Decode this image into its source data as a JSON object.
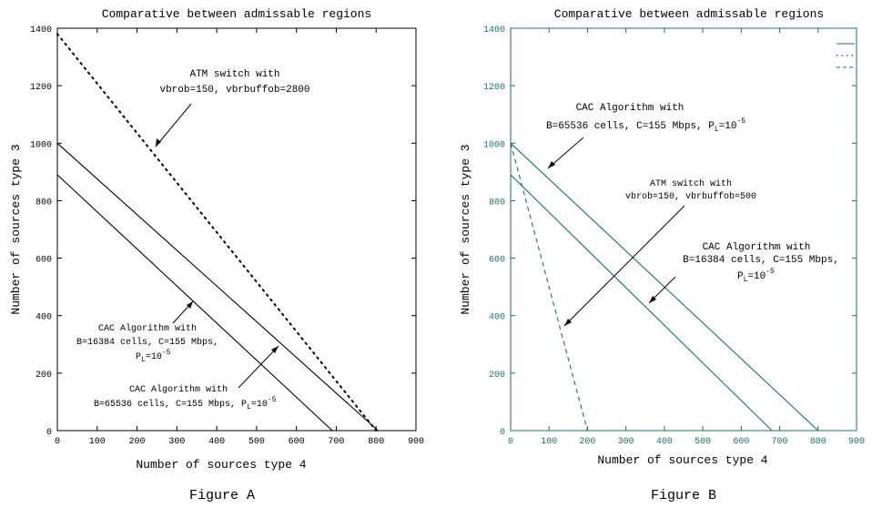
{
  "chart_data": [
    {
      "type": "line",
      "panel": "A",
      "title": "Comparative between admissable regions",
      "xlabel": "Number of sources type 4",
      "ylabel": "Number of sources type 3",
      "caption": "Figure A",
      "xlim": [
        0,
        900
      ],
      "ylim": [
        0,
        1400
      ],
      "xticks": [
        "0",
        "100",
        "200",
        "300",
        "400",
        "500",
        "600",
        "700",
        "800",
        "900"
      ],
      "yticks": [
        "0",
        "200",
        "400",
        "600",
        "800",
        "1000",
        "1200",
        "1400"
      ],
      "grid": false,
      "legend": "none",
      "colors": {
        "axis": "#000000",
        "lines": "#000000"
      },
      "series": [
        {
          "style": "solid",
          "points": [
            [
              0,
              1000
            ],
            [
              805,
              0
            ]
          ]
        },
        {
          "style": "solid",
          "points": [
            [
              0,
              890
            ],
            [
              690,
              0
            ]
          ]
        },
        {
          "style": "dotted",
          "points": [
            [
              0,
              1380
            ],
            [
              800,
              0
            ]
          ]
        }
      ],
      "annotations": [
        {
          "lines": [
            "ATM switch with",
            "vbrob=150, vbrbuffob=2800"
          ],
          "arrow_to": [
            235,
            975
          ]
        },
        {
          "lines": [
            "CAC Algorithm with",
            "B=16384 cells, C=155 Mbps,",
            "P",
            "L",
            "=10",
            "-5"
          ],
          "arrow_to": [
            430,
            455
          ]
        },
        {
          "lines": [
            "CAC Algorithm with",
            "B=65536 cells, C=155 Mbps, P",
            "L",
            "=10",
            "-5"
          ],
          "arrow_to": [
            560,
            310
          ]
        }
      ]
    },
    {
      "type": "line",
      "panel": "B",
      "title": "Comparative between admissable regions",
      "xlabel": "Number of sources type 4",
      "ylabel": "Number of sources type 3",
      "caption": "Figure B",
      "xlim": [
        0,
        900
      ],
      "ylim": [
        0,
        1400
      ],
      "xticks": [
        "0",
        "100",
        "200",
        "300",
        "400",
        "500",
        "600",
        "700",
        "800",
        "900"
      ],
      "yticks": [
        "0",
        "200",
        "400",
        "600",
        "800",
        "1000",
        "1200",
        "1400"
      ],
      "grid": false,
      "legend": "top-right",
      "colors": {
        "axis": "#1f6e66",
        "lines": "#1f6e66"
      },
      "series": [
        {
          "style": "solid",
          "points": [
            [
              0,
              1000
            ],
            [
              800,
              0
            ]
          ]
        },
        {
          "style": "solid",
          "points": [
            [
              0,
              890
            ],
            [
              680,
              0
            ]
          ]
        },
        {
          "style": "dashed",
          "points": [
            [
              0,
              1000
            ],
            [
              200,
              0
            ]
          ]
        }
      ],
      "annotations": [
        {
          "lines": [
            "CAC Algorithm with",
            "B=65536 cells, C=155 Mbps, P",
            "L",
            "=10",
            "-5"
          ],
          "arrow_to": [
            100,
            900
          ]
        },
        {
          "lines": [
            "ATM switch with",
            "vbrob=150, vbrbuffob=500"
          ],
          "arrow_to": [
            135,
            350
          ]
        },
        {
          "lines": [
            "CAC Algorithm with",
            "B=16384 cells, C=155 Mbps,",
            "P",
            "L",
            "=10",
            "-5"
          ],
          "arrow_to": [
            355,
            440
          ]
        }
      ]
    }
  ]
}
